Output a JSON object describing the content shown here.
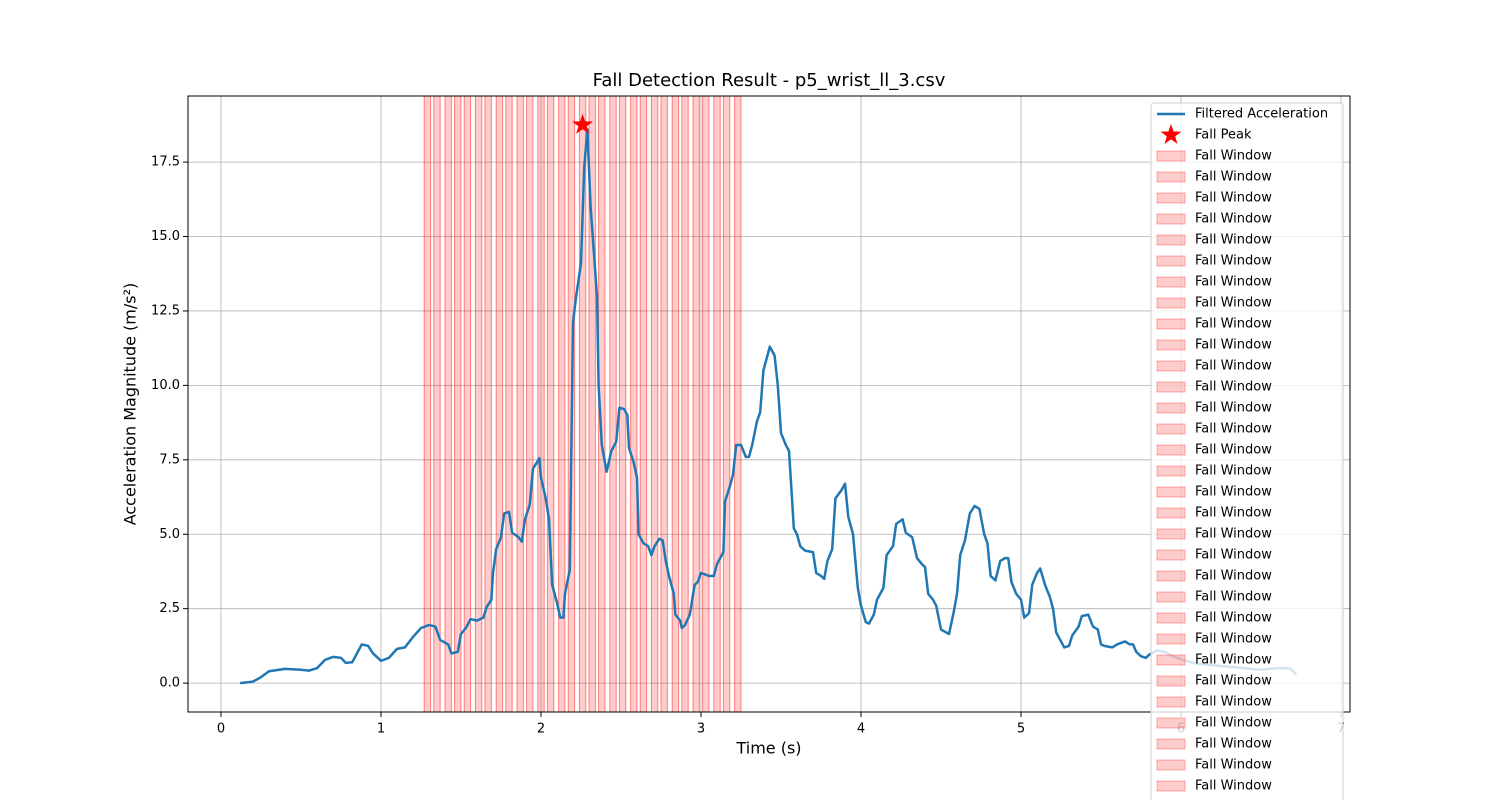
{
  "chart_data": {
    "type": "line",
    "title": "Fall Detection Result - p5_wrist_ll_3.csv",
    "x_label": "Time (s)",
    "y_label": "Acceleration Magnitude (m/s²)",
    "xlim": [
      -0.206,
      7.056
    ],
    "ylim": [
      -0.97,
      19.72
    ],
    "xticks": [
      0,
      1,
      2,
      3,
      4,
      5,
      6,
      7
    ],
    "yticks": [
      {
        "value": 0,
        "label": "0.0"
      },
      2.5,
      {
        "value": 5,
        "label": "5.0"
      },
      7.5,
      {
        "value": 10,
        "label": "10.0"
      },
      12.5,
      {
        "value": 15,
        "label": "15.0"
      },
      17.5
    ],
    "grid": true,
    "legend": "upper right",
    "x": [
      0.12,
      0.2,
      0.25,
      0.3,
      0.4,
      0.5,
      0.55,
      0.6,
      0.65,
      0.7,
      0.75,
      0.78,
      0.82,
      0.85,
      0.88,
      0.92,
      0.95,
      1.0,
      1.05,
      1.1,
      1.15,
      1.2,
      1.25,
      1.3,
      1.34,
      1.37,
      1.42,
      1.44,
      1.48,
      1.5,
      1.53,
      1.56,
      1.6,
      1.64,
      1.66,
      1.69,
      1.7,
      1.72,
      1.75,
      1.77,
      1.8,
      1.82,
      1.86,
      1.88,
      1.9,
      1.93,
      1.95,
      1.99,
      2.0,
      2.03,
      2.05,
      2.07,
      2.1,
      2.12,
      2.14,
      2.15,
      2.18,
      2.2,
      2.22,
      2.25,
      2.27,
      2.29,
      2.31,
      2.33,
      2.35,
      2.36,
      2.38,
      2.41,
      2.44,
      2.47,
      2.49,
      2.52,
      2.54,
      2.55,
      2.58,
      2.6,
      2.61,
      2.64,
      2.67,
      2.69,
      2.71,
      2.74,
      2.76,
      2.78,
      2.8,
      2.83,
      2.84,
      2.87,
      2.88,
      2.9,
      2.93,
      2.96,
      2.98,
      3.0,
      3.05,
      3.08,
      3.1,
      3.14,
      3.15,
      3.18,
      3.2,
      3.22,
      3.25,
      3.28,
      3.3,
      3.32,
      3.35,
      3.37,
      3.39,
      3.43,
      3.46,
      3.48,
      3.5,
      3.53,
      3.55,
      3.57,
      3.58,
      3.6,
      3.62,
      3.65,
      3.7,
      3.72,
      3.75,
      3.77,
      3.79,
      3.82,
      3.84,
      3.88,
      3.9,
      3.92,
      3.95,
      3.98,
      4.0,
      4.03,
      4.05,
      4.08,
      4.1,
      4.14,
      4.16,
      4.2,
      4.22,
      4.26,
      4.28,
      4.32,
      4.35,
      4.38,
      4.4,
      4.42,
      4.45,
      4.47,
      4.5,
      4.55,
      4.58,
      4.6,
      4.62,
      4.65,
      4.68,
      4.71,
      4.74,
      4.77,
      4.79,
      4.81,
      4.84,
      4.87,
      4.9,
      4.92,
      4.94,
      4.97,
      5.0,
      5.02,
      5.05,
      5.07,
      5.1,
      5.12,
      5.15,
      5.18,
      5.2,
      5.22,
      5.25,
      5.27,
      5.3,
      5.32,
      5.36,
      5.38,
      5.42,
      5.45,
      5.48,
      5.5,
      5.52,
      5.57,
      5.6,
      5.65,
      5.68,
      5.7,
      5.72,
      5.75,
      5.78,
      5.8,
      5.85,
      5.9,
      5.95,
      6.0,
      6.1,
      6.2,
      6.3,
      6.4,
      6.5,
      6.6,
      6.68,
      6.72
    ],
    "series": [
      {
        "name": "Filtered Acceleration",
        "color": "#1f77b4",
        "values": [
          0.0,
          0.05,
          0.2,
          0.4,
          0.48,
          0.45,
          0.42,
          0.5,
          0.78,
          0.88,
          0.85,
          0.68,
          0.7,
          1.0,
          1.3,
          1.25,
          1.0,
          0.75,
          0.85,
          1.15,
          1.2,
          1.55,
          1.85,
          1.95,
          1.9,
          1.45,
          1.3,
          1.0,
          1.05,
          1.65,
          1.85,
          2.15,
          2.1,
          2.2,
          2.55,
          2.8,
          3.7,
          4.5,
          4.9,
          5.7,
          5.75,
          5.05,
          4.9,
          4.75,
          5.5,
          6.0,
          7.2,
          7.55,
          6.9,
          6.2,
          5.5,
          3.3,
          2.7,
          2.2,
          2.2,
          3.0,
          3.8,
          12.1,
          13.0,
          14.1,
          17.3,
          18.6,
          16.0,
          14.5,
          13.0,
          10.0,
          8.0,
          7.1,
          7.8,
          8.1,
          9.25,
          9.2,
          9.0,
          7.9,
          7.4,
          6.9,
          5.0,
          4.7,
          4.6,
          4.3,
          4.6,
          4.85,
          4.8,
          4.1,
          3.6,
          3.0,
          2.3,
          2.1,
          1.85,
          1.95,
          2.3,
          3.3,
          3.4,
          3.7,
          3.6,
          3.6,
          4.0,
          4.4,
          6.1,
          6.6,
          7.0,
          8.0,
          8.0,
          7.6,
          7.6,
          8.0,
          8.8,
          9.1,
          10.5,
          11.3,
          11.0,
          10.0,
          8.4,
          8.0,
          7.8,
          6.1,
          5.2,
          5.0,
          4.6,
          4.45,
          4.4,
          3.7,
          3.6,
          3.5,
          4.1,
          4.5,
          6.2,
          6.5,
          6.7,
          5.6,
          5.0,
          3.2,
          2.6,
          2.05,
          2.0,
          2.3,
          2.8,
          3.2,
          4.3,
          4.6,
          5.35,
          5.5,
          5.05,
          4.9,
          4.2,
          4.0,
          3.9,
          3.0,
          2.8,
          2.6,
          1.8,
          1.65,
          2.4,
          3.0,
          4.3,
          4.8,
          5.7,
          5.95,
          5.85,
          5.0,
          4.7,
          3.6,
          3.45,
          4.1,
          4.2,
          4.2,
          3.4,
          3.0,
          2.8,
          2.2,
          2.35,
          3.3,
          3.7,
          3.85,
          3.3,
          2.9,
          2.5,
          1.7,
          1.4,
          1.2,
          1.25,
          1.6,
          1.9,
          2.25,
          2.3,
          1.9,
          1.8,
          1.3,
          1.25,
          1.2,
          1.3,
          1.4,
          1.3,
          1.3,
          1.05,
          0.9,
          0.85,
          0.95,
          1.1,
          1.05,
          0.9,
          0.8,
          0.65,
          0.6,
          0.55,
          0.5,
          0.45,
          0.5,
          0.5,
          0.3
        ]
      }
    ],
    "fall_peak": {
      "name": "Fall Peak",
      "color": "#ff0000",
      "x": 2.26,
      "value": 18.75
    },
    "window_color": "#ff0000",
    "fall_windows": [
      {
        "name": "Fall Window",
        "start": 1.27,
        "end": 1.31
      },
      {
        "name": "Fall Window",
        "start": 1.33,
        "end": 1.37
      },
      {
        "name": "Fall Window",
        "start": 1.4,
        "end": 1.44
      },
      {
        "name": "Fall Window",
        "start": 1.46,
        "end": 1.5
      },
      {
        "name": "Fall Window",
        "start": 1.52,
        "end": 1.56
      },
      {
        "name": "Fall Window",
        "start": 1.59,
        "end": 1.63
      },
      {
        "name": "Fall Window",
        "start": 1.65,
        "end": 1.69
      },
      {
        "name": "Fall Window",
        "start": 1.72,
        "end": 1.76
      },
      {
        "name": "Fall Window",
        "start": 1.78,
        "end": 1.82
      },
      {
        "name": "Fall Window",
        "start": 1.85,
        "end": 1.89
      },
      {
        "name": "Fall Window",
        "start": 1.91,
        "end": 1.95
      },
      {
        "name": "Fall Window",
        "start": 1.98,
        "end": 2.02
      },
      {
        "name": "Fall Window",
        "start": 2.04,
        "end": 2.08
      },
      {
        "name": "Fall Window",
        "start": 2.11,
        "end": 2.15
      },
      {
        "name": "Fall Window",
        "start": 2.17,
        "end": 2.21
      },
      {
        "name": "Fall Window",
        "start": 2.24,
        "end": 2.28
      },
      {
        "name": "Fall Window",
        "start": 2.3,
        "end": 2.34
      },
      {
        "name": "Fall Window",
        "start": 2.36,
        "end": 2.4
      },
      {
        "name": "Fall Window",
        "start": 2.43,
        "end": 2.47
      },
      {
        "name": "Fall Window",
        "start": 2.49,
        "end": 2.53
      },
      {
        "name": "Fall Window",
        "start": 2.56,
        "end": 2.6
      },
      {
        "name": "Fall Window",
        "start": 2.62,
        "end": 2.66
      },
      {
        "name": "Fall Window",
        "start": 2.69,
        "end": 2.73
      },
      {
        "name": "Fall Window",
        "start": 2.75,
        "end": 2.79
      },
      {
        "name": "Fall Window",
        "start": 2.82,
        "end": 2.86
      },
      {
        "name": "Fall Window",
        "start": 2.88,
        "end": 2.92
      },
      {
        "name": "Fall Window",
        "start": 2.95,
        "end": 2.99
      },
      {
        "name": "Fall Window",
        "start": 3.01,
        "end": 3.05
      },
      {
        "name": "Fall Window",
        "start": 3.08,
        "end": 3.12
      },
      {
        "name": "Fall Window",
        "start": 3.14,
        "end": 3.18
      },
      {
        "name": "Fall Window",
        "start": 3.21,
        "end": 3.25
      }
    ]
  }
}
